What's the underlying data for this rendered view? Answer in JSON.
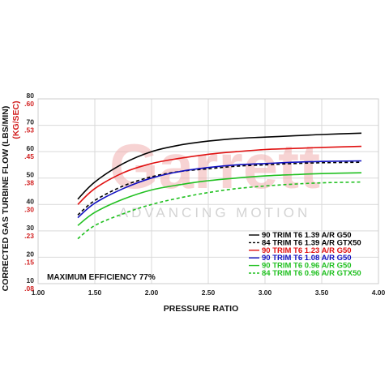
{
  "chart_data": {
    "type": "line",
    "title": "",
    "xlabel": "PRESSURE RATIO",
    "ylabel": "CORRECTED GAS TURBINE FLOW (LBS/MIN)",
    "ylabel_secondary": "(KG/SEC)",
    "xlim": [
      1.0,
      4.0
    ],
    "ylim": [
      10,
      80
    ],
    "x_ticks": [
      "1.00",
      "1.50",
      "2.00",
      "2.50",
      "3.00",
      "3.50",
      "4.00"
    ],
    "y_ticks": [
      "10",
      "20",
      "30",
      "40",
      "50",
      "60",
      "70",
      "80"
    ],
    "y_ticks_secondary": [
      ".08",
      ".15",
      ".23",
      ".30",
      ".38",
      ".45",
      ".53",
      ".60"
    ],
    "grid": true,
    "annotation": "MAXIMUM EFFICIENCY 77%",
    "watermark": {
      "brand": "Garrett",
      "tagline": "ADVANCING MOTION"
    },
    "legend_position": "bottom-right",
    "series": [
      {
        "name": "90 TRIM T6 1.39 A/R G50",
        "color": "#000000",
        "dash": "solid",
        "x": [
          1.35,
          1.5,
          1.75,
          2.0,
          2.25,
          2.5,
          2.75,
          3.0,
          3.25,
          3.5,
          3.85
        ],
        "y": [
          42,
          48.5,
          55.5,
          60,
          62.5,
          64,
          65,
          65.5,
          66,
          66.5,
          67
        ]
      },
      {
        "name": "84 TRIM T6 1.39 A/R GTX50",
        "color": "#000000",
        "dash": "dashed",
        "x": [
          1.35,
          1.5,
          1.75,
          2.0,
          2.25,
          2.5,
          2.75,
          3.0,
          3.25,
          3.5,
          3.85
        ],
        "y": [
          36,
          41.5,
          47,
          50.5,
          52.5,
          53.5,
          54.5,
          55,
          55.5,
          55.8,
          56
        ]
      },
      {
        "name": "90 TRIM T6 1.23 A/R G50",
        "color": "#e01010",
        "dash": "solid",
        "x": [
          1.35,
          1.5,
          1.75,
          2.0,
          2.25,
          2.5,
          2.75,
          3.0,
          3.25,
          3.5,
          3.85
        ],
        "y": [
          40,
          46,
          52,
          55.5,
          57.5,
          59,
          60,
          60.8,
          61.2,
          61.6,
          62
        ]
      },
      {
        "name": "90 TRIM T6 1.08 A/R G50",
        "color": "#1010c0",
        "dash": "solid",
        "x": [
          1.35,
          1.5,
          1.75,
          2.0,
          2.25,
          2.5,
          2.75,
          3.0,
          3.25,
          3.5,
          3.85
        ],
        "y": [
          35,
          40.5,
          46,
          50,
          52.5,
          54,
          55,
          55.5,
          56,
          56.3,
          56.5
        ]
      },
      {
        "name": "90 TRIM T6 0.96 A/R G50",
        "color": "#20c020",
        "dash": "solid",
        "x": [
          1.35,
          1.5,
          1.75,
          2.0,
          2.25,
          2.5,
          2.75,
          3.0,
          3.25,
          3.5,
          3.85
        ],
        "y": [
          32,
          37,
          42,
          45.5,
          47.5,
          49,
          50,
          50.8,
          51.3,
          51.7,
          52
        ]
      },
      {
        "name": "84 TRIM T6 0.96 A/R GTX50",
        "color": "#20c020",
        "dash": "dashed",
        "x": [
          1.35,
          1.5,
          1.75,
          2.0,
          2.25,
          2.5,
          2.75,
          3.0,
          3.25,
          3.5,
          3.85
        ],
        "y": [
          27,
          32,
          36.5,
          40,
          42.5,
          44.5,
          46,
          47,
          47.7,
          48.2,
          48.5
        ]
      }
    ]
  }
}
